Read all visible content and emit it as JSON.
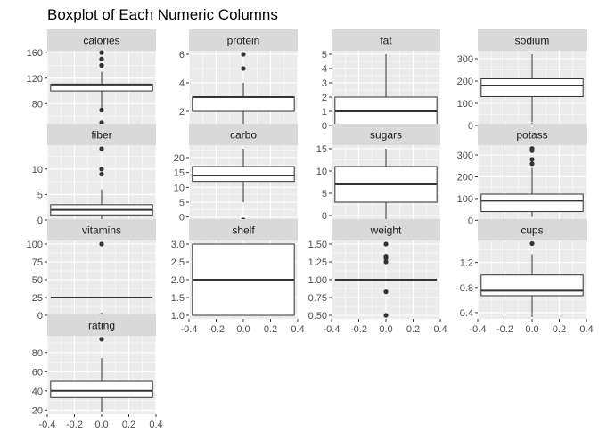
{
  "figure_title": "Boxplot of Each Numeric Columns",
  "shared_x_axis": {
    "xlim": [
      -0.4,
      0.4
    ],
    "ticks": [
      -0.4,
      -0.2,
      0.0,
      0.2,
      0.4
    ],
    "tick_labels": [
      "-0.4",
      "-0.2",
      "0.0",
      "0.2",
      "0.4"
    ]
  },
  "colors": {
    "panel_bg": "#ebebeb",
    "strip_bg": "#d9d9d9",
    "gridline": "#ffffff",
    "box_fill": "#ffffff",
    "box_stroke": "#333333",
    "text": "#1a1a1a",
    "tick_text": "#4d4d4d"
  },
  "chart_data": [
    {
      "type": "boxplot",
      "title": "calories",
      "ylim": [
        40,
        163
      ],
      "yticks": [
        80,
        120,
        160
      ],
      "ytick_labels": [
        "80",
        "120",
        "160"
      ],
      "whisker_low": 70,
      "q1": 100,
      "median": 110,
      "q3": 110,
      "whisker_high": 130,
      "outliers": [
        50,
        70,
        70,
        140,
        140,
        150,
        150,
        160
      ]
    },
    {
      "type": "boxplot",
      "title": "protein",
      "ylim": [
        0.75,
        6.25
      ],
      "yticks": [
        2,
        4,
        6
      ],
      "ytick_labels": [
        "2",
        "4",
        "6"
      ],
      "whisker_low": 1,
      "q1": 2,
      "median": 3,
      "q3": 3,
      "whisker_high": 4,
      "outliers": [
        5,
        6
      ]
    },
    {
      "type": "boxplot",
      "title": "fat",
      "ylim": [
        -0.25,
        5.25
      ],
      "yticks": [
        0,
        1,
        2,
        3,
        4,
        5
      ],
      "ytick_labels": [
        "0",
        "1",
        "2",
        "3",
        "4",
        "5"
      ],
      "whisker_low": 0,
      "q1": 0,
      "median": 1,
      "q3": 2,
      "whisker_high": 5,
      "outliers": []
    },
    {
      "type": "boxplot",
      "title": "sodium",
      "ylim": [
        -16,
        336
      ],
      "yticks": [
        0,
        100,
        200,
        300
      ],
      "ytick_labels": [
        "0",
        "100",
        "200",
        "300"
      ],
      "whisker_low": 15,
      "q1": 130,
      "median": 180,
      "q3": 210,
      "whisker_high": 320,
      "outliers": [
        0
      ]
    },
    {
      "type": "boxplot",
      "title": "fiber",
      "ylim": [
        -0.7,
        14.7
      ],
      "yticks": [
        0,
        5,
        10
      ],
      "ytick_labels": [
        "0",
        "5",
        "10"
      ],
      "whisker_low": 0,
      "q1": 1,
      "median": 2,
      "q3": 3,
      "whisker_high": 6,
      "outliers": [
        9,
        10,
        14
      ]
    },
    {
      "type": "boxplot",
      "title": "carbo",
      "ylim": [
        -2.2,
        24.2
      ],
      "yticks": [
        0,
        5,
        10,
        15,
        20
      ],
      "ytick_labels": [
        "0",
        "5",
        "10",
        "15",
        "20"
      ],
      "whisker_low": 5,
      "q1": 12,
      "median": 14,
      "q3": 17,
      "whisker_high": 23,
      "outliers": [
        -1
      ]
    },
    {
      "type": "boxplot",
      "title": "sugars",
      "ylim": [
        -1.8,
        15.8
      ],
      "yticks": [
        0,
        5,
        10,
        15
      ],
      "ytick_labels": [
        "0",
        "5",
        "10",
        "15"
      ],
      "whisker_low": -1,
      "q1": 3,
      "median": 7,
      "q3": 11,
      "whisker_high": 15,
      "outliers": []
    },
    {
      "type": "boxplot",
      "title": "potass",
      "ylim": [
        -15,
        345
      ],
      "yticks": [
        0,
        100,
        200,
        300
      ],
      "ytick_labels": [
        "0",
        "100",
        "200",
        "300"
      ],
      "whisker_low": 15,
      "q1": 40,
      "median": 90,
      "q3": 120,
      "whisker_high": 240,
      "outliers": [
        260,
        280,
        320,
        330
      ]
    },
    {
      "type": "boxplot",
      "title": "vitamins",
      "ylim": [
        -5,
        105
      ],
      "yticks": [
        0,
        25,
        50,
        75,
        100
      ],
      "ytick_labels": [
        "0",
        "25",
        "50",
        "75",
        "100"
      ],
      "whisker_low": 25,
      "q1": 25,
      "median": 25,
      "q3": 25,
      "whisker_high": 25,
      "outliers": [
        0,
        100
      ]
    },
    {
      "type": "boxplot",
      "title": "shelf",
      "ylim": [
        0.9,
        3.1
      ],
      "yticks": [
        1.0,
        1.5,
        2.0,
        2.5,
        3.0
      ],
      "ytick_labels": [
        "1.0",
        "1.5",
        "2.0",
        "2.5",
        "3.0"
      ],
      "whisker_low": 1,
      "q1": 1,
      "median": 2,
      "q3": 3,
      "whisker_high": 3,
      "outliers": []
    },
    {
      "type": "boxplot",
      "title": "weight",
      "ylim": [
        0.45,
        1.55
      ],
      "yticks": [
        0.5,
        0.75,
        1.0,
        1.25,
        1.5
      ],
      "ytick_labels": [
        "0.50",
        "0.75",
        "1.00",
        "1.25",
        "1.50"
      ],
      "whisker_low": 1,
      "q1": 1,
      "median": 1,
      "q3": 1,
      "whisker_high": 1,
      "outliers": [
        0.5,
        0.83,
        1.25,
        1.3,
        1.33,
        1.5
      ]
    },
    {
      "type": "boxplot",
      "title": "cups",
      "ylim": [
        0.3,
        1.55
      ],
      "yticks": [
        0.4,
        0.8,
        1.2
      ],
      "ytick_labels": [
        "0.4",
        "0.8",
        "1.2"
      ],
      "whisker_low": 0.33,
      "q1": 0.67,
      "median": 0.75,
      "q3": 1.0,
      "whisker_high": 1.33,
      "outliers": [
        1.5
      ]
    },
    {
      "type": "boxplot",
      "title": "rating",
      "ylim": [
        15.6,
        97.5
      ],
      "yticks": [
        20,
        40,
        60,
        80
      ],
      "ytick_labels": [
        "20",
        "40",
        "60",
        "80"
      ],
      "whisker_low": 18,
      "q1": 33,
      "median": 40,
      "q3": 50,
      "whisker_high": 74,
      "outliers": [
        94
      ]
    }
  ]
}
